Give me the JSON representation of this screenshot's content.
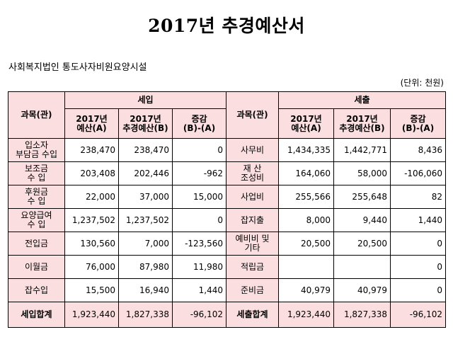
{
  "title": "2017년 추경예산서",
  "org": "사회복지법인 통도사자비원요양시설",
  "unit": "(단위: 천원)",
  "table": {
    "col_category": "과목(관)",
    "income_header": "세입",
    "expense_header": "세출",
    "sub_budget": "2017년\n예산(A)",
    "sub_revised": "2017년\n추경예산(B)",
    "sub_diff": "증감\n(B)-(A)",
    "rows": [
      {
        "in_cat": "입소자\n부담금 수입",
        "in_a": "238,470",
        "in_b": "238,470",
        "in_d": "0",
        "out_cat": "사무비",
        "out_a": "1,434,335",
        "out_b": "1,442,771",
        "out_d": "8,436"
      },
      {
        "in_cat": "보조금\n수   입",
        "in_a": "203,408",
        "in_b": "202,446",
        "in_d": "-962",
        "out_cat": "재   산\n조성비",
        "out_a": "164,060",
        "out_b": "58,000",
        "out_d": "-106,060"
      },
      {
        "in_cat": "후원금\n수   입",
        "in_a": "22,000",
        "in_b": "37,000",
        "in_d": "15,000",
        "out_cat": "사업비",
        "out_a": "255,566",
        "out_b": "255,648",
        "out_d": "82"
      },
      {
        "in_cat": "요양급여\n수   입",
        "in_a": "1,237,502",
        "in_b": "1,237,502",
        "in_d": "0",
        "out_cat": "잡지출",
        "out_a": "8,000",
        "out_b": "9,440",
        "out_d": "1,440"
      },
      {
        "in_cat": "전입금",
        "in_a": "130,560",
        "in_b": "7,000",
        "in_d": "-123,560",
        "out_cat": "예비비 및\n기타",
        "out_a": "20,500",
        "out_b": "20,500",
        "out_d": "0"
      },
      {
        "in_cat": "이월금",
        "in_a": "76,000",
        "in_b": "87,980",
        "in_d": "11,980",
        "out_cat": "적립금",
        "out_a": "",
        "out_b": "",
        "out_d": "0"
      },
      {
        "in_cat": "잡수입",
        "in_a": "15,500",
        "in_b": "16,940",
        "in_d": "1,440",
        "out_cat": "준비금",
        "out_a": "40,979",
        "out_b": "40,979",
        "out_d": "0"
      }
    ],
    "total": {
      "in_cat": "세입합계",
      "in_a": "1,923,440",
      "in_b": "1,827,338",
      "in_d": "-96,102",
      "out_cat": "세출합계",
      "out_a": "1,923,440",
      "out_b": "1,827,338",
      "out_d": "-96,102"
    }
  },
  "colors": {
    "header_bg": "#fbdfe0",
    "border": "#000000"
  }
}
